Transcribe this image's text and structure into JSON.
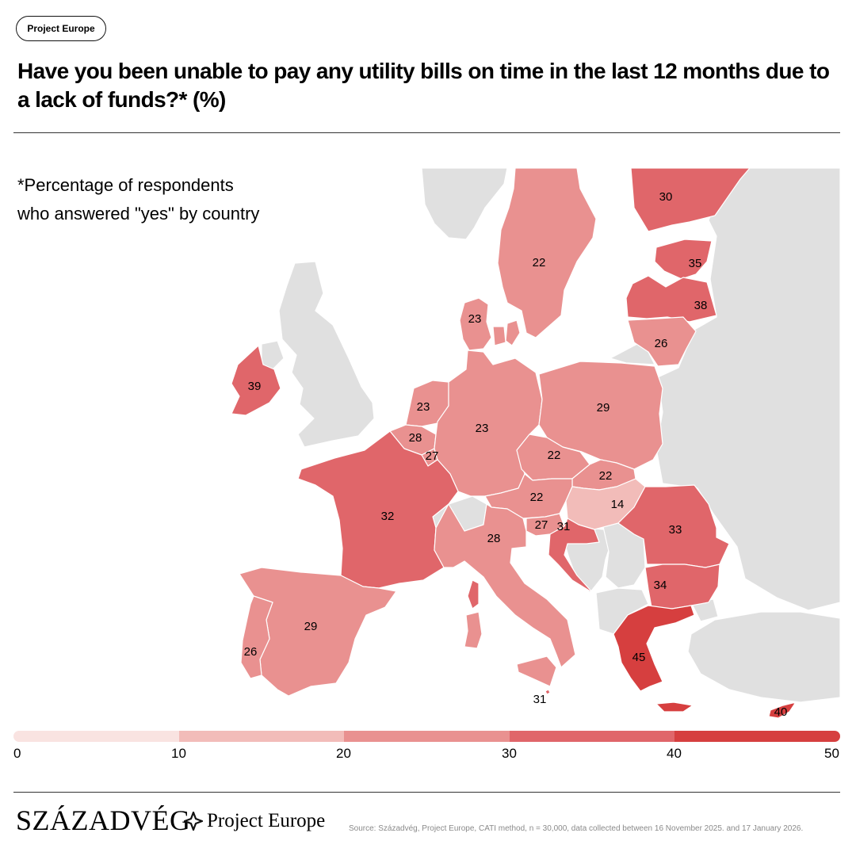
{
  "tag": "Project Europe",
  "title": "Have you been unable to pay any utility bills on time in the last 12 months due to a lack of funds?* (%)",
  "note": "*Percentage of respondents who answered \"yes\" by country",
  "legend": {
    "ticks": [
      "0",
      "10",
      "20",
      "30",
      "40",
      "50"
    ],
    "colors": [
      "#f9e3e1",
      "#f2bcb9",
      "#e99190",
      "#e0666a",
      "#d63f3f"
    ]
  },
  "chart_data": {
    "type": "choropleth",
    "scale": [
      0,
      50
    ],
    "values": [
      {
        "country": "Finland",
        "value": 30
      },
      {
        "country": "Sweden",
        "value": 22
      },
      {
        "country": "Estonia",
        "value": 35
      },
      {
        "country": "Latvia",
        "value": 38
      },
      {
        "country": "Lithuania",
        "value": 26
      },
      {
        "country": "Denmark",
        "value": 23
      },
      {
        "country": "Ireland",
        "value": 39
      },
      {
        "country": "Netherlands",
        "value": 23
      },
      {
        "country": "Belgium",
        "value": 28
      },
      {
        "country": "Luxembourg",
        "value": 27
      },
      {
        "country": "Germany",
        "value": 23
      },
      {
        "country": "Poland",
        "value": 29
      },
      {
        "country": "Czechia",
        "value": 22
      },
      {
        "country": "Slovakia",
        "value": 22
      },
      {
        "country": "Austria",
        "value": 22
      },
      {
        "country": "Hungary",
        "value": 14
      },
      {
        "country": "France",
        "value": 32
      },
      {
        "country": "Slovenia",
        "value": 27
      },
      {
        "country": "Croatia",
        "value": 31
      },
      {
        "country": "Romania",
        "value": 33
      },
      {
        "country": "Italy",
        "value": 28
      },
      {
        "country": "Bulgaria",
        "value": 34
      },
      {
        "country": "Spain",
        "value": 29
      },
      {
        "country": "Portugal",
        "value": 26
      },
      {
        "country": "Greece",
        "value": 45
      },
      {
        "country": "Malta",
        "value": 31
      },
      {
        "country": "Cyprus",
        "value": 40
      }
    ]
  },
  "footer": {
    "brand1": "SZÁZADVÉG",
    "brand2": "Project Europe",
    "source": "Source: Századvég, Project Europe, CATI method, n = 30,000, data collected between 16 November 2025. and 17 January 2026."
  }
}
